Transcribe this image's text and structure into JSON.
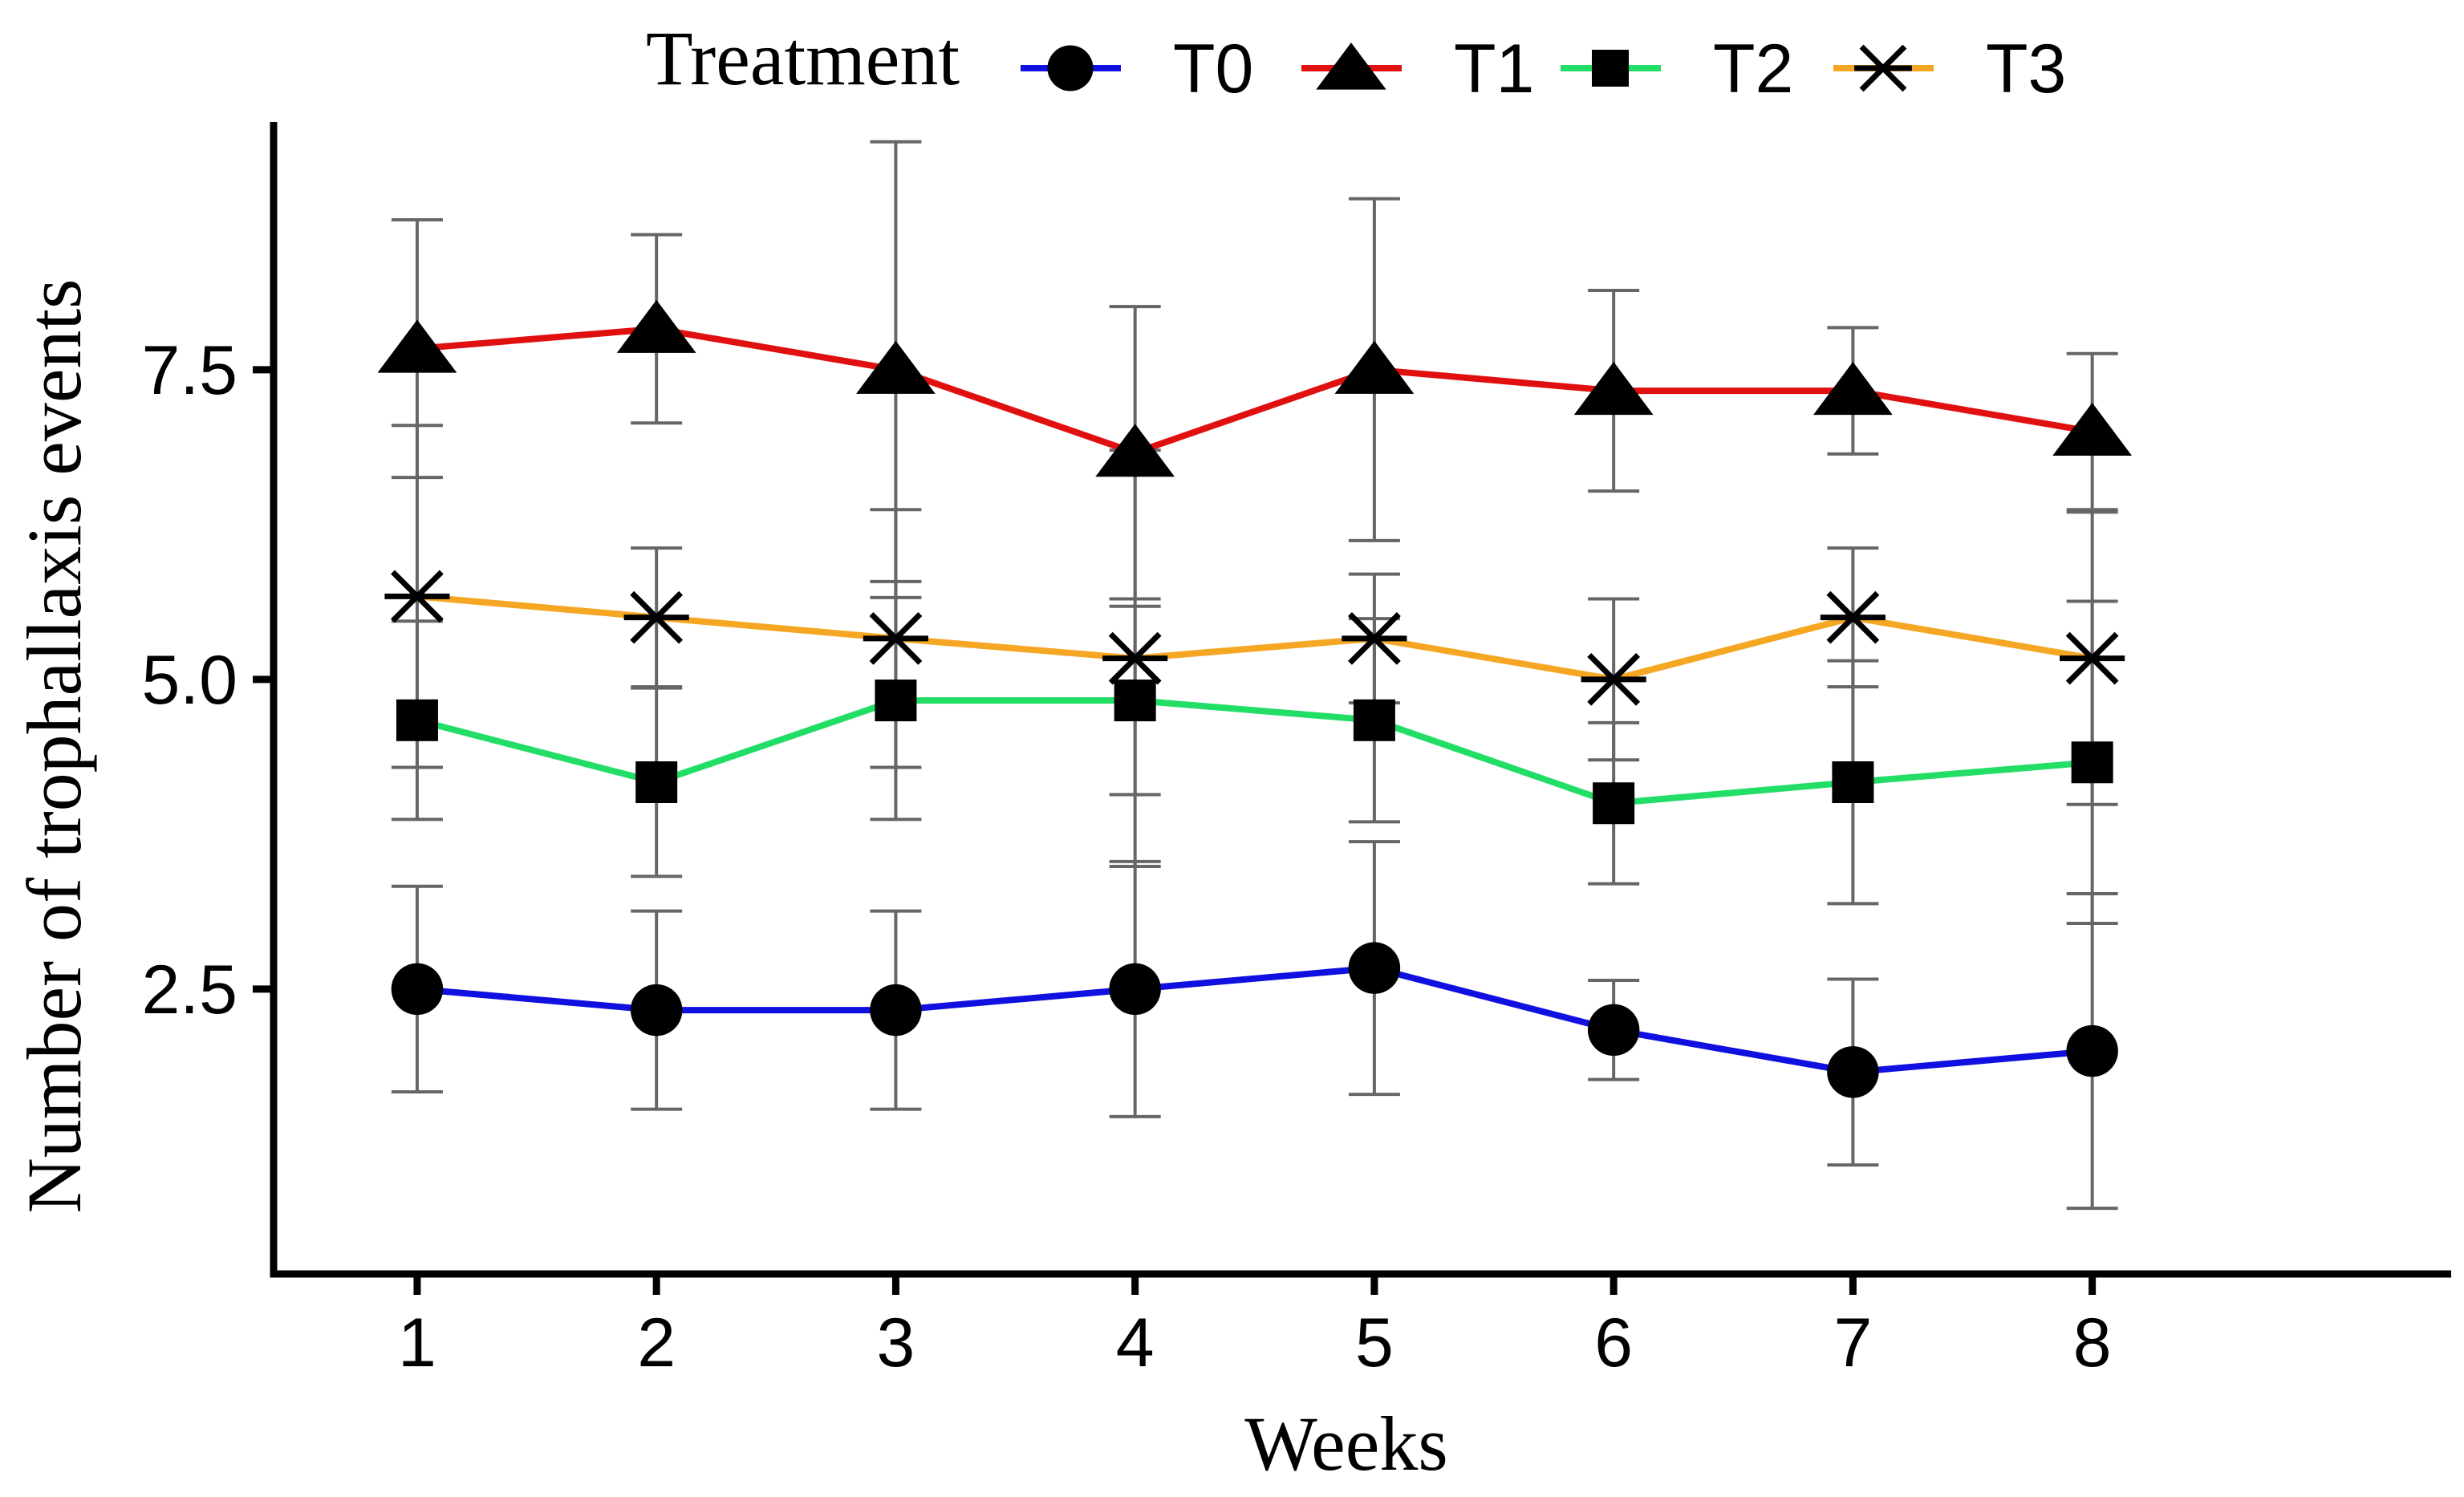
{
  "chart_data": {
    "type": "line",
    "title": "",
    "xlabel": "Weeks",
    "ylabel": "Number of trophallaxis events",
    "x": [
      1,
      2,
      3,
      4,
      5,
      6,
      7,
      8
    ],
    "xlim": [
      0.4,
      9.5
    ],
    "ylim": [
      0.2,
      9.5
    ],
    "x_ticks": [
      "1",
      "2",
      "3",
      "4",
      "5",
      "6",
      "7",
      "8"
    ],
    "y_ticks": [
      {
        "value": 2.5,
        "label": "2.5"
      },
      {
        "value": 5.0,
        "label": "5.0"
      },
      {
        "value": 7.5,
        "label": "7.5"
      }
    ],
    "grid": false,
    "legend": {
      "title": "Treatment",
      "position": "top"
    },
    "series": [
      {
        "name": "T0",
        "color": "#1010E0",
        "marker": "circle",
        "values": [
          2.5,
          2.33,
          2.33,
          2.5,
          2.67,
          2.17,
          1.83,
          2.0
        ],
        "error_low": [
          1.67,
          1.53,
          1.53,
          1.47,
          1.65,
          1.77,
          1.08,
          0.73
        ],
        "error_high": [
          3.33,
          3.13,
          3.13,
          3.53,
          3.69,
          2.57,
          2.58,
          3.27
        ]
      },
      {
        "name": "T1",
        "color": "#E01010",
        "marker": "triangle",
        "values": [
          7.67,
          7.83,
          7.5,
          6.83,
          7.5,
          7.33,
          7.33,
          7.0
        ],
        "error_low": [
          6.63,
          7.07,
          5.66,
          5.65,
          6.12,
          6.52,
          6.82,
          6.37
        ],
        "error_high": [
          8.71,
          8.59,
          9.34,
          8.01,
          8.88,
          8.14,
          7.84,
          7.63
        ]
      },
      {
        "name": "T2",
        "color": "#22DD66",
        "marker": "square",
        "values": [
          4.67,
          4.17,
          4.83,
          4.83,
          4.67,
          4.0,
          4.17,
          4.33
        ],
        "error_low": [
          3.87,
          3.41,
          3.87,
          4.07,
          3.85,
          3.35,
          3.19,
          3.03
        ],
        "error_high": [
          5.47,
          4.93,
          5.79,
          5.59,
          5.49,
          4.65,
          5.15,
          5.63
        ]
      },
      {
        "name": "T3",
        "color": "#F5A623",
        "marker": "asterisk",
        "values": [
          5.67,
          5.5,
          5.33,
          5.17,
          5.33,
          5.0,
          5.5,
          5.17
        ],
        "error_low": [
          4.29,
          4.94,
          4.29,
          3.49,
          4.81,
          4.35,
          4.94,
          3.99
        ],
        "error_high": [
          7.05,
          6.06,
          6.37,
          6.85,
          5.85,
          5.65,
          6.06,
          6.35
        ]
      }
    ]
  }
}
